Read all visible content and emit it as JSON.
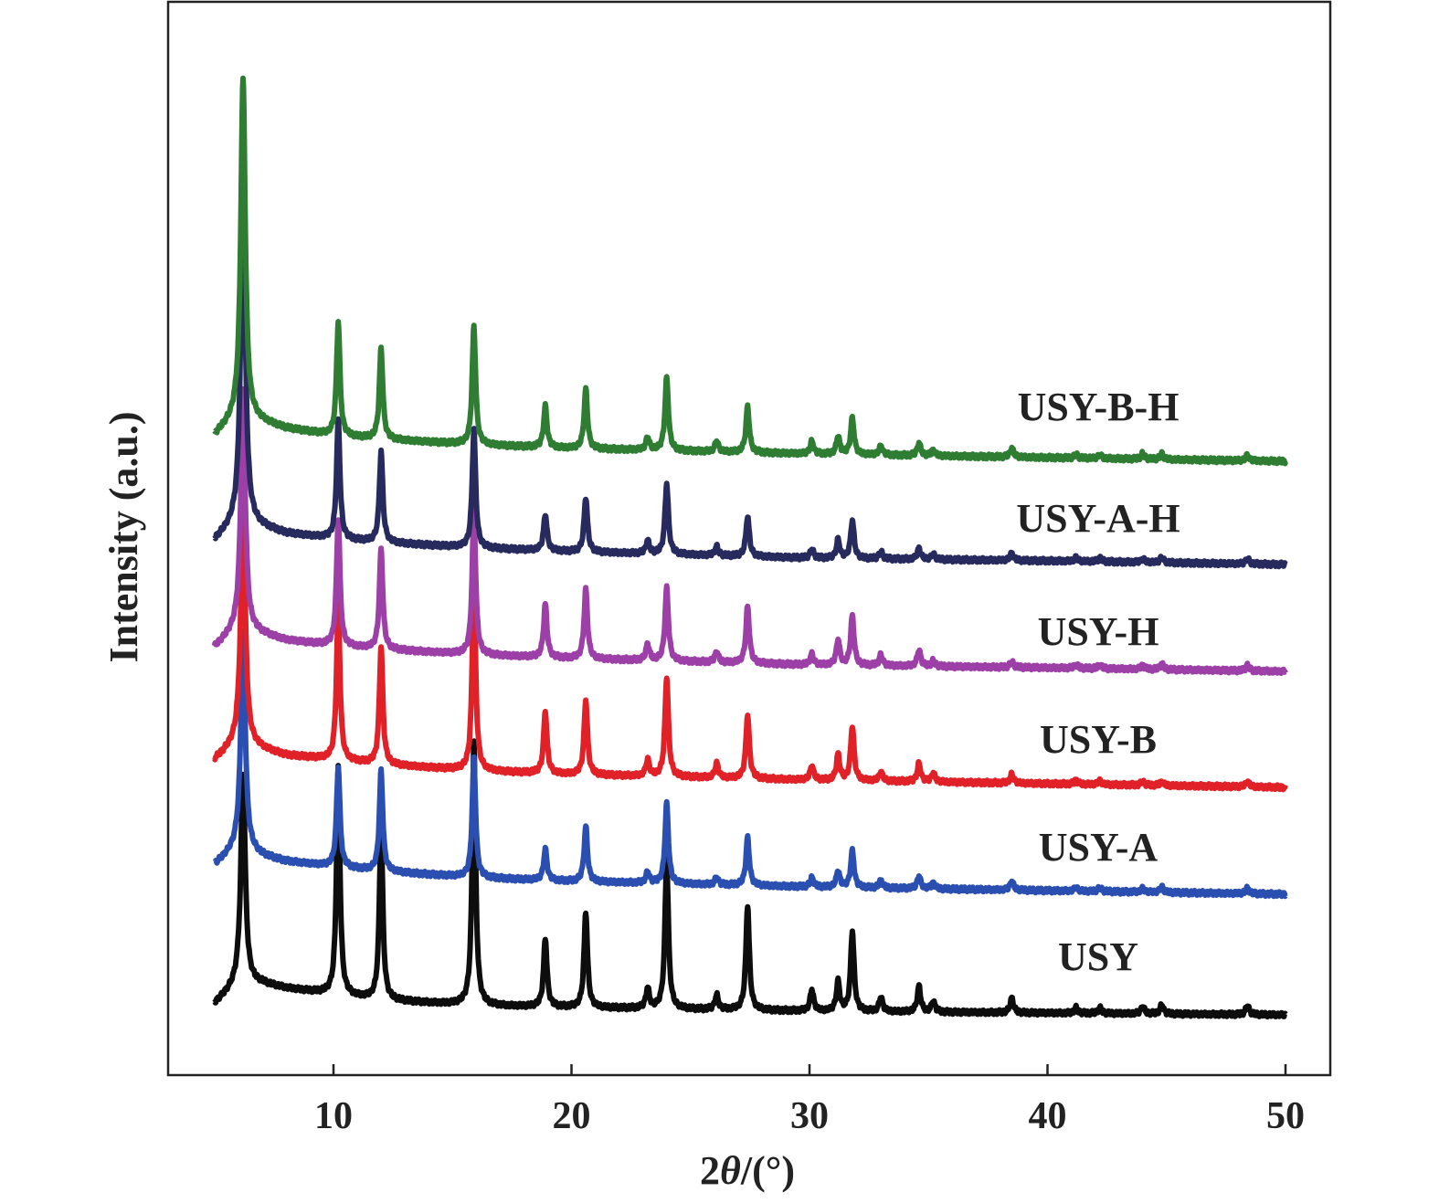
{
  "chart_data": {
    "type": "line",
    "xlabel_parts": [
      "2",
      "θ",
      "/(°)"
    ],
    "ylabel": "Intensity (a.u.)",
    "xlim": [
      5,
      50
    ],
    "xticks": [
      10,
      20,
      30,
      40,
      50
    ],
    "y_axis_ticks": false,
    "grid": false,
    "legend": "none",
    "peak_positions_2theta": [
      6.2,
      10.2,
      12.0,
      15.9,
      18.9,
      20.6,
      23.2,
      24.0,
      26.1,
      27.4,
      30.1,
      31.2,
      31.8,
      33.0,
      34.6,
      35.2,
      38.5,
      41.2,
      42.2,
      44.0,
      44.8,
      48.4
    ],
    "series": [
      {
        "name": "USY",
        "color": "#0d0d0d",
        "offset": 0,
        "baseline": [
          [
            5.0,
            18
          ],
          [
            6.0,
            40
          ],
          [
            7.0,
            40
          ],
          [
            8.0,
            35
          ],
          [
            10.0,
            28
          ],
          [
            12.0,
            22
          ],
          [
            16.0,
            16
          ],
          [
            20.0,
            14
          ],
          [
            30.0,
            10
          ],
          [
            40.0,
            8
          ],
          [
            50.0,
            6
          ]
        ],
        "peak_heights": [
          230,
          250,
          190,
          290,
          75,
          105,
          22,
          165,
          16,
          115,
          24,
          32,
          88,
          16,
          28,
          12,
          16,
          6,
          6,
          8,
          10,
          10
        ]
      },
      {
        "name": "USY-A",
        "color": "#2b4fb0",
        "offset": 130,
        "baseline": [
          [
            5.0,
            40
          ],
          [
            6.0,
            60
          ],
          [
            7.0,
            50
          ],
          [
            8.0,
            44
          ],
          [
            10.0,
            38
          ],
          [
            12.0,
            33
          ],
          [
            16.0,
            26
          ],
          [
            20.0,
            22
          ],
          [
            30.0,
            16
          ],
          [
            40.0,
            12
          ],
          [
            50.0,
            8
          ]
        ],
        "peak_heights": [
          238,
          110,
          110,
          130,
          34,
          60,
          12,
          88,
          8,
          52,
          10,
          18,
          40,
          8,
          14,
          6,
          10,
          4,
          4,
          4,
          6,
          6
        ]
      },
      {
        "name": "USY-B",
        "color": "#e02128",
        "offset": 245,
        "baseline": [
          [
            5.0,
            40
          ],
          [
            6.0,
            60
          ],
          [
            7.0,
            52
          ],
          [
            8.0,
            45
          ],
          [
            10.0,
            40
          ],
          [
            12.0,
            35
          ],
          [
            16.0,
            28
          ],
          [
            20.0,
            24
          ],
          [
            30.0,
            18
          ],
          [
            40.0,
            14
          ],
          [
            50.0,
            10
          ]
        ],
        "peak_heights": [
          270,
          170,
          130,
          210,
          68,
          82,
          18,
          110,
          16,
          70,
          16,
          28,
          60,
          10,
          20,
          10,
          10,
          4,
          4,
          4,
          4,
          6
        ]
      },
      {
        "name": "USY-H",
        "color": "#9c3fa6",
        "offset": 368,
        "baseline": [
          [
            5.0,
            40
          ],
          [
            6.0,
            62
          ],
          [
            7.0,
            55
          ],
          [
            8.0,
            48
          ],
          [
            10.0,
            42
          ],
          [
            12.0,
            38
          ],
          [
            16.0,
            32
          ],
          [
            20.0,
            28
          ],
          [
            30.0,
            21
          ],
          [
            40.0,
            18
          ],
          [
            50.0,
            14
          ]
        ],
        "peak_heights": [
          260,
          140,
          110,
          160,
          58,
          76,
          18,
          80,
          12,
          62,
          12,
          28,
          54,
          12,
          18,
          6,
          6,
          4,
          4,
          4,
          6,
          6
        ]
      },
      {
        "name": "USY-A-H",
        "color": "#272a5c",
        "offset": 485,
        "baseline": [
          [
            5.0,
            40
          ],
          [
            6.0,
            62
          ],
          [
            7.0,
            55
          ],
          [
            8.0,
            48
          ],
          [
            10.0,
            42
          ],
          [
            12.0,
            38
          ],
          [
            16.0,
            32
          ],
          [
            20.0,
            28
          ],
          [
            30.0,
            21
          ],
          [
            40.0,
            18
          ],
          [
            50.0,
            14
          ]
        ],
        "peak_heights": [
          388,
          130,
          100,
          130,
          40,
          60,
          14,
          78,
          10,
          44,
          10,
          20,
          42,
          8,
          12,
          6,
          8,
          4,
          4,
          4,
          6,
          6
        ]
      },
      {
        "name": "USY-B-H",
        "color": "#2e7d32",
        "offset": 600,
        "baseline": [
          [
            5.0,
            40
          ],
          [
            6.0,
            62
          ],
          [
            7.0,
            55
          ],
          [
            8.0,
            48
          ],
          [
            10.0,
            40
          ],
          [
            12.0,
            36
          ],
          [
            16.0,
            30
          ],
          [
            20.0,
            26
          ],
          [
            30.0,
            20
          ],
          [
            40.0,
            16
          ],
          [
            50.0,
            12
          ]
        ],
        "peak_heights": [
          370,
          125,
          100,
          130,
          45,
          65,
          14,
          80,
          12,
          50,
          14,
          20,
          40,
          10,
          14,
          6,
          10,
          4,
          4,
          6,
          6,
          6
        ]
      }
    ]
  }
}
